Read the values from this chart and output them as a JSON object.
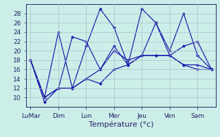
{
  "x_tick_positions": [
    0,
    2,
    4,
    6,
    8,
    10,
    12
  ],
  "x_tick_labels": [
    "LuMar",
    "Dim",
    "Lun",
    "Mer",
    "Jeu",
    "Ven",
    "Sam"
  ],
  "series": [
    {
      "points": [
        [
          0,
          18
        ],
        [
          1,
          9
        ],
        [
          2,
          12
        ],
        [
          3,
          12
        ],
        [
          4,
          14
        ],
        [
          5,
          13
        ],
        [
          6,
          16
        ],
        [
          7,
          17
        ],
        [
          8,
          19
        ],
        [
          9,
          19
        ],
        [
          10,
          19
        ],
        [
          11,
          17
        ],
        [
          12,
          17
        ],
        [
          13,
          16
        ]
      ]
    },
    {
      "points": [
        [
          0,
          18
        ],
        [
          1,
          10
        ],
        [
          2,
          24
        ],
        [
          3,
          12
        ],
        [
          4,
          21
        ],
        [
          5,
          29
        ],
        [
          6,
          25
        ],
        [
          7,
          17
        ],
        [
          8,
          29
        ],
        [
          9,
          26
        ],
        [
          10,
          20
        ],
        [
          11,
          28
        ],
        [
          12,
          19
        ],
        [
          13,
          16
        ]
      ]
    },
    {
      "points": [
        [
          0,
          18
        ],
        [
          1,
          10
        ],
        [
          2,
          12
        ],
        [
          3,
          23
        ],
        [
          4,
          22
        ],
        [
          5,
          16
        ],
        [
          6,
          21
        ],
        [
          7,
          17
        ],
        [
          8,
          19
        ],
        [
          9,
          26
        ],
        [
          10,
          19
        ],
        [
          11,
          21
        ],
        [
          12,
          22
        ],
        [
          13,
          16
        ]
      ]
    },
    {
      "points": [
        [
          0,
          18
        ],
        [
          1,
          10
        ],
        [
          2,
          12
        ],
        [
          3,
          12
        ],
        [
          4,
          14
        ],
        [
          5,
          16
        ],
        [
          6,
          20
        ],
        [
          7,
          18
        ],
        [
          8,
          19
        ],
        [
          9,
          19
        ],
        [
          10,
          19
        ],
        [
          11,
          17
        ],
        [
          12,
          16
        ],
        [
          13,
          16
        ]
      ]
    }
  ],
  "line_color": "#1a1aaa",
  "marker_color": "#1a1aaa",
  "background_color": "#cceee8",
  "grid_color": "#aabbcc",
  "xlabel": "Température (°c)",
  "ylim": [
    8,
    30
  ],
  "yticks": [
    10,
    12,
    14,
    16,
    18,
    20,
    22,
    24,
    26,
    28
  ],
  "tick_fontsize": 6.5,
  "xlabel_fontsize": 8,
  "linewidth": 0.9,
  "markersize": 2.5
}
